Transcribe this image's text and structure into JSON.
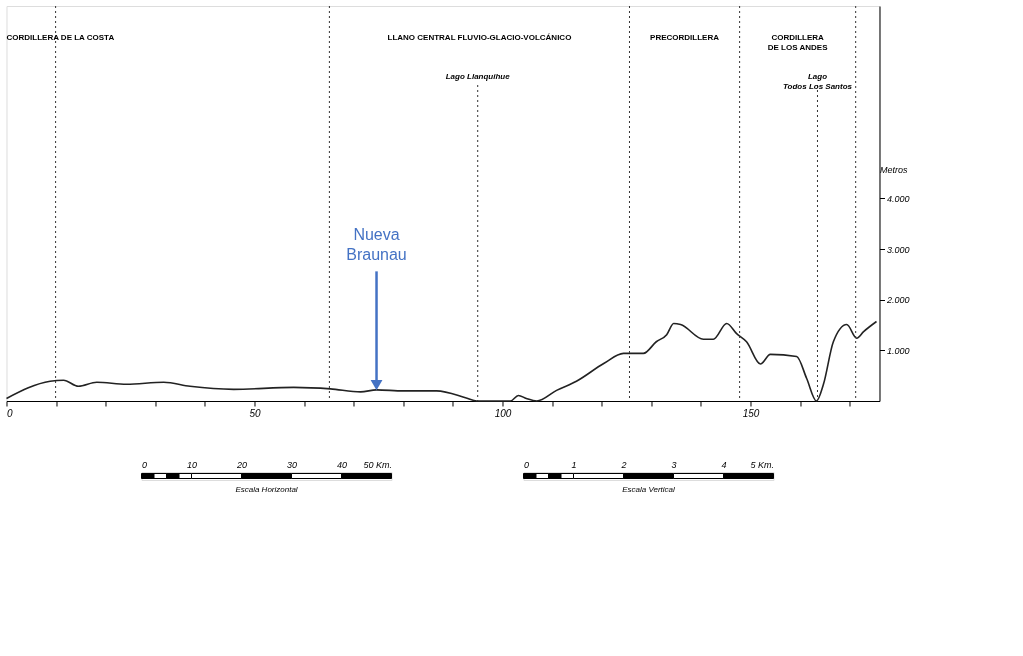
{
  "chart_data": [
    {
      "type": "line",
      "ylabel": "Metros",
      "series": [
        {
          "color": "#222222",
          "x": [
            0,
            8.8,
            11.5,
            14.5,
            18.2,
            24.2,
            31.7,
            37,
            45.8,
            57.9,
            65.3,
            71.4,
            74.6,
            80,
            86.7,
            92.7,
            94.8,
            101.6,
            103.2,
            104.8,
            106.9,
            110.9,
            114.9,
            120.4,
            124.4,
            128.4,
            131,
            133.1,
            134.5,
            135.9,
            140.5,
            142.5,
            145.2,
            147.2,
            149.2,
            152,
            154,
            159.3,
            161.3,
            163.3,
            164.7,
            166.7,
            169.4,
            171.4,
            172.8,
            175.4
          ],
          "values": [
            50,
            390,
            410,
            290,
            370,
            330,
            370,
            290,
            230,
            270,
            240,
            180,
            220,
            200,
            200,
            60,
            0,
            0,
            110,
            50,
            0,
            210,
            390,
            740,
            940,
            940,
            1170,
            1310,
            1530,
            1510,
            1220,
            1220,
            1530,
            1330,
            1170,
            730,
            920,
            880,
            450,
            0,
            330,
            1170,
            1510,
            1240,
            1370,
            1570
          ]
        }
      ],
      "xlim": [
        0,
        176
      ],
      "xticks": [
        0,
        {
          "value": 10,
          "label": null
        },
        {
          "value": 20,
          "label": null
        },
        {
          "value": 30,
          "label": null
        },
        {
          "value": 40,
          "label": null
        },
        50,
        {
          "value": 60,
          "label": null
        },
        {
          "value": 70,
          "label": null
        },
        {
          "value": 80,
          "label": null
        },
        {
          "value": 90,
          "label": null
        },
        100,
        {
          "value": 110,
          "label": null
        },
        {
          "value": 120,
          "label": null
        },
        {
          "value": 130,
          "label": null
        },
        {
          "value": 140,
          "label": null
        },
        150,
        {
          "value": 160,
          "label": null
        },
        {
          "value": 170,
          "label": null
        }
      ],
      "ylim": [
        0,
        7800
      ],
      "yticks": [
        {
          "value": 1000,
          "label": "1.000"
        },
        {
          "value": 2000,
          "label": "2.000"
        },
        {
          "value": 3000,
          "label": "3.000"
        },
        {
          "value": 4000,
          "label": "4.000"
        }
      ],
      "ref_lines": [
        {
          "axis": "x",
          "value": 9.9,
          "line_style": "dotted"
        },
        {
          "axis": "x",
          "value": 65.1,
          "line_style": "dotted"
        },
        {
          "axis": "x",
          "value": 125.6,
          "line_style": "dotted"
        },
        {
          "axis": "x",
          "value": 147.8,
          "line_style": "dotted"
        },
        {
          "axis": "x",
          "value": 171.2,
          "line_style": "dotted"
        },
        {
          "axis": "x",
          "value": 95,
          "label": "Lago Llanquihue",
          "line_style": "dotted"
        },
        {
          "axis": "x",
          "value": 163.5,
          "label": "Lago\nTodos Los Santos",
          "line_style": "dotted"
        }
      ],
      "annotations": [
        "CORDILLERA DE LA COSTA",
        "LLANO CENTRAL FLUVIO-GLACIO-VOLCÁNICO",
        "PRECORDILLERA",
        "CORDILLERA\nDE LOS ANDES",
        {
          "text": "Nueva\nBraunau",
          "x": 74.6,
          "y": 220
        }
      ],
      "grid": false,
      "marker": "none",
      "line_style": "solid"
    },
    {
      "type": "bar",
      "orientation": "horizontal",
      "stacked": true,
      "categories": [
        null
      ],
      "xlabel": "Escala Horizontal",
      "series": [
        {
          "color": "#000000",
          "values": [
            2.5
          ]
        },
        {
          "color": "#ffffff",
          "values": [
            2.5
          ]
        },
        {
          "color": "#000000",
          "values": [
            2.5
          ]
        },
        {
          "color": "#ffffff",
          "values": [
            2.5
          ]
        },
        {
          "color": "#ffffff",
          "values": [
            10
          ]
        },
        {
          "color": "#000000",
          "values": [
            10
          ]
        },
        {
          "color": "#ffffff",
          "values": [
            10
          ]
        },
        {
          "color": "#000000",
          "values": [
            10
          ]
        }
      ],
      "xlim": [
        0,
        50
      ],
      "xticks": [
        0,
        10,
        20,
        30,
        40,
        {
          "value": 50,
          "label": "50 Km."
        }
      ]
    },
    {
      "type": "bar",
      "orientation": "horizontal",
      "stacked": true,
      "categories": [
        null
      ],
      "xlabel": "Escala Vertical",
      "series": [
        {
          "color": "#000000",
          "values": [
            0.25
          ]
        },
        {
          "color": "#ffffff",
          "values": [
            0.25
          ]
        },
        {
          "color": "#000000",
          "values": [
            0.25
          ]
        },
        {
          "color": "#ffffff",
          "values": [
            0.25
          ]
        },
        {
          "color": "#ffffff",
          "values": [
            1
          ]
        },
        {
          "color": "#000000",
          "values": [
            1
          ]
        },
        {
          "color": "#ffffff",
          "values": [
            1
          ]
        },
        {
          "color": "#000000",
          "values": [
            1
          ]
        }
      ],
      "xlim": [
        0,
        5
      ],
      "xticks": [
        0,
        1,
        2,
        3,
        4,
        {
          "value": 5,
          "label": "5 Km."
        }
      ]
    }
  ]
}
